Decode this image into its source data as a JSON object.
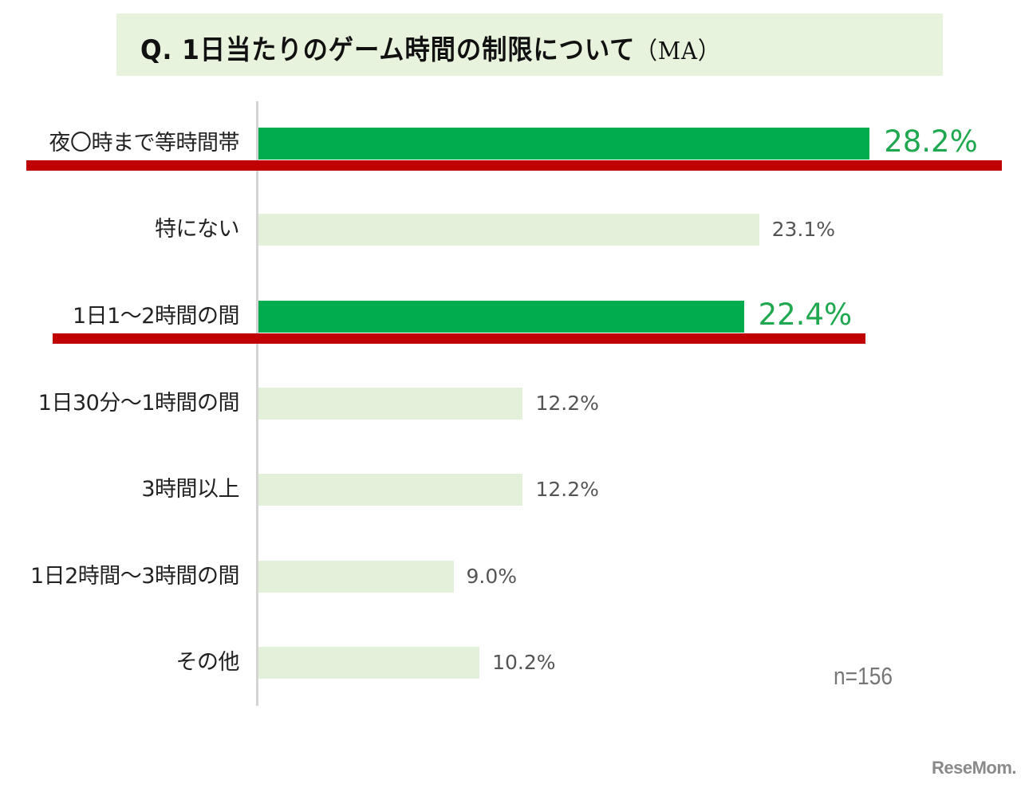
{
  "header": {
    "title": "Q. 1日当たりのゲーム時間の制限について",
    "title_suffix": "（MA）"
  },
  "footer": {
    "sample_size": "n=156",
    "watermark": "ReseMom."
  },
  "colors": {
    "highlight_bar": "#00ac4e",
    "normal_bar": "#e3f0da",
    "highlight_text": "#1fa84f",
    "underline": "#c00000",
    "title_bg": "#e8f3de"
  },
  "rows": [
    {
      "label": "夜〇時まで等時間帯",
      "value": 28.2,
      "value_label": "28.2%",
      "highlight": true
    },
    {
      "label": "特にない",
      "value": 23.1,
      "value_label": "23.1%",
      "highlight": false
    },
    {
      "label": "1日1～2時間の間",
      "value": 22.4,
      "value_label": "22.4%",
      "highlight": true
    },
    {
      "label": "1日30分～1時間の間",
      "value": 12.2,
      "value_label": "12.2%",
      "highlight": false
    },
    {
      "label": "3時間以上",
      "value": 12.2,
      "value_label": "12.2%",
      "highlight": false
    },
    {
      "label": "1日2時間～3時間の間",
      "value": 9.0,
      "value_label": "9.0%",
      "highlight": false
    },
    {
      "label": "その他",
      "value": 10.2,
      "value_label": "10.2%",
      "highlight": false
    }
  ],
  "chart_data": {
    "type": "bar",
    "orientation": "horizontal",
    "title": "Q. 1日当たりのゲーム時間の制限について（MA）",
    "categories": [
      "夜〇時まで等時間帯",
      "特にない",
      "1日1～2時間の間",
      "1日30分～1時間の間",
      "3時間以上",
      "1日2時間～3時間の間",
      "その他"
    ],
    "values": [
      28.2,
      23.1,
      22.4,
      12.2,
      12.2,
      9.0,
      10.2
    ],
    "unit": "%",
    "highlighted": [
      "夜〇時まで等時間帯",
      "1日1～2時間の間"
    ],
    "annotation": "n=156",
    "xlabel": "",
    "ylabel": "",
    "grid": false,
    "legend": null
  }
}
